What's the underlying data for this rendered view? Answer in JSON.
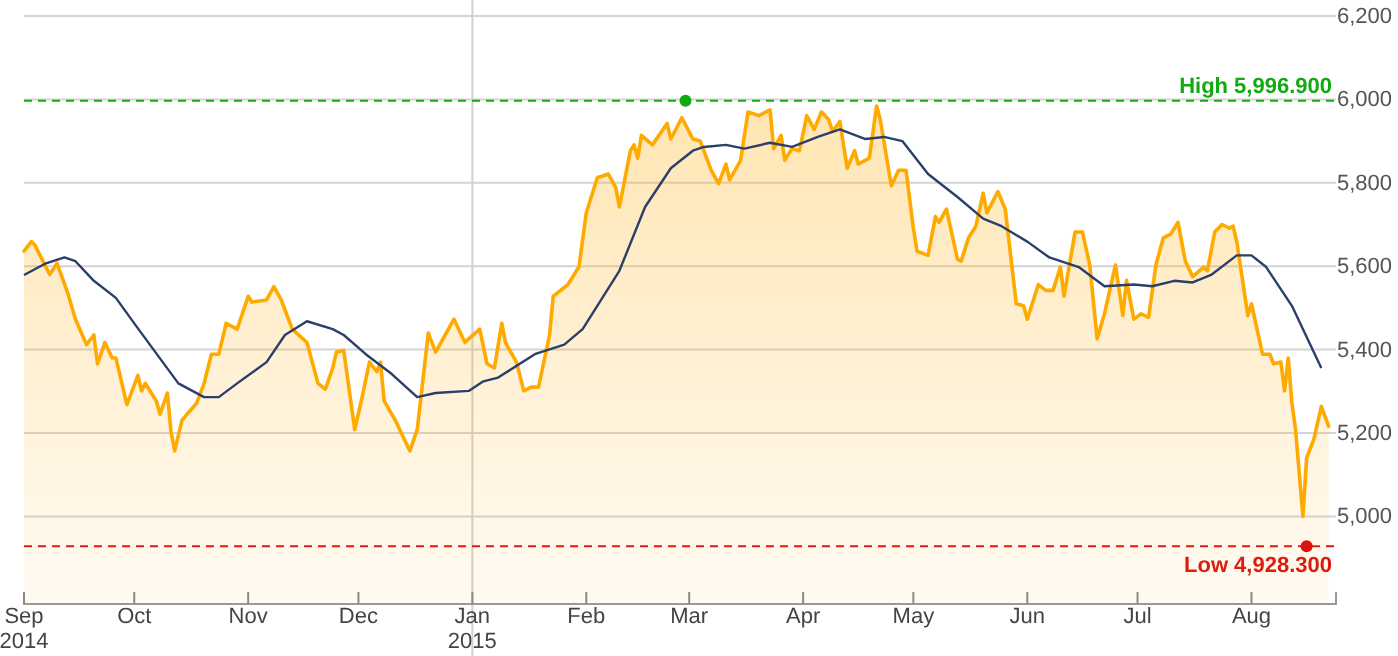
{
  "chart_data": {
    "type": "area",
    "xlim": [
      "2014-09-01",
      "2015-08-24"
    ],
    "ylim": [
      4790,
      6200
    ],
    "yticks": [
      {
        "value": 5000,
        "label": "5,000"
      },
      {
        "value": 5200,
        "label": "5,200"
      },
      {
        "value": 5400,
        "label": "5,400"
      },
      {
        "value": 5600,
        "label": "5,600"
      },
      {
        "value": 5800,
        "label": "5,800"
      },
      {
        "value": 6000,
        "label": "6,000"
      },
      {
        "value": 6200,
        "label": "6,200"
      }
    ],
    "xticks": [
      {
        "value": "2014-09-01",
        "label": "Sep"
      },
      {
        "value": "2014-10-01",
        "label": "Oct"
      },
      {
        "value": "2014-11-01",
        "label": "Nov"
      },
      {
        "value": "2014-12-01",
        "label": "Dec"
      },
      {
        "value": "2015-01-01",
        "label": "Jan"
      },
      {
        "value": "2015-02-01",
        "label": "Feb"
      },
      {
        "value": "2015-03-01",
        "label": "Mar"
      },
      {
        "value": "2015-04-01",
        "label": "Apr"
      },
      {
        "value": "2015-05-01",
        "label": "May"
      },
      {
        "value": "2015-06-01",
        "label": "Jun"
      },
      {
        "value": "2015-07-01",
        "label": "Jul"
      },
      {
        "value": "2015-08-01",
        "label": "Aug"
      }
    ],
    "grid": "y",
    "annotations": [
      "2014",
      "2015"
    ],
    "ref_lines": [
      {
        "axis": "y",
        "value": 5996.9,
        "label": "High 5,996.900",
        "color": "#11aa11",
        "line_style": "dashed"
      },
      {
        "axis": "y",
        "value": 4928.3,
        "label": "Low 4,928.300",
        "color": "#dd1111",
        "line_style": "dashed"
      },
      {
        "axis": "x",
        "value": "2015-01-01",
        "color": "#d0d0d0",
        "line_style": "solid"
      }
    ],
    "series": [
      {
        "color": "#ffaa00",
        "x": [
          "2014-09-01",
          "2014-09-03",
          "2014-09-04",
          "2014-09-08",
          "2014-09-10",
          "2014-09-13",
          "2014-09-15",
          "2014-09-18",
          "2014-09-20",
          "2014-09-21",
          "2014-09-23",
          "2014-09-25",
          "2014-09-26",
          "2014-09-29",
          "2014-10-02",
          "2014-10-03",
          "2014-10-04",
          "2014-10-07",
          "2014-10-08",
          "2014-10-10",
          "2014-10-11",
          "2014-10-12",
          "2014-10-14",
          "2014-10-18",
          "2014-10-20",
          "2014-10-22",
          "2014-10-24",
          "2014-10-26",
          "2014-10-29",
          "2014-11-01",
          "2014-11-02",
          "2014-11-06",
          "2014-11-08",
          "2014-11-10",
          "2014-11-13",
          "2014-11-17",
          "2014-11-20",
          "2014-11-22",
          "2014-11-24",
          "2014-11-25",
          "2014-11-27",
          "2014-11-30",
          "2014-12-02",
          "2014-12-04",
          "2014-12-06",
          "2014-12-07",
          "2014-12-08",
          "2014-12-11",
          "2014-12-15",
          "2014-12-17",
          "2014-12-20",
          "2014-12-22",
          "2014-12-27",
          "2014-12-30",
          "2014-12-31",
          "2015-01-03",
          "2015-01-05",
          "2015-01-07",
          "2015-01-09",
          "2015-01-10",
          "2015-01-13",
          "2015-01-15",
          "2015-01-17",
          "2015-01-19",
          "2015-01-22",
          "2015-01-23",
          "2015-01-27",
          "2015-01-30",
          "2015-02-01",
          "2015-02-04",
          "2015-02-07",
          "2015-02-09",
          "2015-02-10",
          "2015-02-13",
          "2015-02-14",
          "2015-02-15",
          "2015-02-16",
          "2015-02-19",
          "2015-02-23",
          "2015-02-24",
          "2015-02-27",
          "2015-03-02",
          "2015-03-04",
          "2015-03-07",
          "2015-03-09",
          "2015-03-11",
          "2015-03-12",
          "2015-03-15",
          "2015-03-17",
          "2015-03-20",
          "2015-03-23",
          "2015-03-24",
          "2015-03-26",
          "2015-03-27",
          "2015-03-29",
          "2015-03-31",
          "2015-04-02",
          "2015-04-04",
          "2015-04-06",
          "2015-04-08",
          "2015-04-09",
          "2015-04-11",
          "2015-04-13",
          "2015-04-15",
          "2015-04-16",
          "2015-04-19",
          "2015-04-21",
          "2015-04-22",
          "2015-04-25",
          "2015-04-27",
          "2015-04-29",
          "2015-05-01",
          "2015-05-02",
          "2015-05-05",
          "2015-05-07",
          "2015-05-08",
          "2015-05-10",
          "2015-05-13",
          "2015-05-14",
          "2015-05-16",
          "2015-05-18",
          "2015-05-20",
          "2015-05-21",
          "2015-05-24",
          "2015-05-26",
          "2015-05-29",
          "2015-05-31",
          "2015-06-01",
          "2015-06-04",
          "2015-06-06",
          "2015-06-08",
          "2015-06-10",
          "2015-06-11",
          "2015-06-14",
          "2015-06-16",
          "2015-06-18",
          "2015-06-20",
          "2015-06-22",
          "2015-06-25",
          "2015-06-27",
          "2015-06-28",
          "2015-06-30",
          "2015-07-02",
          "2015-07-04",
          "2015-07-06",
          "2015-07-08",
          "2015-07-10",
          "2015-07-12",
          "2015-07-14",
          "2015-07-16",
          "2015-07-19",
          "2015-07-20",
          "2015-07-22",
          "2015-07-24",
          "2015-07-26",
          "2015-07-27",
          "2015-07-28",
          "2015-07-31",
          "2015-08-01",
          "2015-08-04",
          "2015-08-06",
          "2015-08-07",
          "2015-08-09",
          "2015-08-10",
          "2015-08-11",
          "2015-08-12",
          "2015-08-13",
          "2015-08-15",
          "2015-08-16",
          "2015-08-18",
          "2015-08-20",
          "2015-08-22"
        ],
        "values": [
          5636,
          5659,
          5650,
          5580,
          5607,
          5533,
          5473,
          5412,
          5435,
          5366,
          5417,
          5380,
          5380,
          5268,
          5338,
          5301,
          5319,
          5277,
          5245,
          5296,
          5203,
          5157,
          5231,
          5272,
          5319,
          5389,
          5389,
          5463,
          5449,
          5528,
          5514,
          5519,
          5551,
          5519,
          5449,
          5417,
          5319,
          5305,
          5356,
          5394,
          5398,
          5208,
          5286,
          5370,
          5347,
          5370,
          5277,
          5231,
          5157,
          5208,
          5440,
          5394,
          5473,
          5417,
          5426,
          5449,
          5366,
          5356,
          5463,
          5417,
          5370,
          5301,
          5310,
          5310,
          5435,
          5528,
          5556,
          5598,
          5728,
          5812,
          5821,
          5789,
          5742,
          5877,
          5891,
          5859,
          5914,
          5891,
          5942,
          5905,
          5956,
          5905,
          5900,
          5830,
          5798,
          5845,
          5807,
          5854,
          5970,
          5961,
          5975,
          5882,
          5914,
          5854,
          5882,
          5877,
          5961,
          5928,
          5970,
          5951,
          5923,
          5947,
          5835,
          5877,
          5845,
          5859,
          5984,
          5951,
          5793,
          5830,
          5830,
          5691,
          5636,
          5626,
          5719,
          5705,
          5737,
          5617,
          5612,
          5668,
          5696,
          5775,
          5728,
          5779,
          5737,
          5510,
          5505,
          5473,
          5556,
          5542,
          5542,
          5598,
          5528,
          5682,
          5682,
          5603,
          5426,
          5486,
          5603,
          5482,
          5566,
          5473,
          5486,
          5477,
          5603,
          5668,
          5677,
          5705,
          5612,
          5575,
          5598,
          5589,
          5682,
          5700,
          5691,
          5696,
          5659,
          5482,
          5510,
          5389,
          5389,
          5366,
          5370,
          5301,
          5380,
          5272,
          5208,
          5000,
          5140,
          5186,
          5264,
          5216
        ]
      },
      {
        "type": "line",
        "color": "#2b3f6b",
        "x": [
          "2014-09-01",
          "2014-09-07",
          "2014-09-12",
          "2014-09-15",
          "2014-09-20",
          "2014-09-26",
          "2014-10-01",
          "2014-10-06",
          "2014-10-13",
          "2014-10-20",
          "2014-10-24",
          "2014-10-29",
          "2014-11-06",
          "2014-11-11",
          "2014-11-17",
          "2014-11-24",
          "2014-11-27",
          "2014-12-03",
          "2014-12-10",
          "2014-12-17",
          "2014-12-22",
          "2014-12-31",
          "2015-01-04",
          "2015-01-08",
          "2015-01-18",
          "2015-01-26",
          "2015-01-31",
          "2015-02-10",
          "2015-02-17",
          "2015-02-24",
          "2015-03-02",
          "2015-03-05",
          "2015-03-11",
          "2015-03-16",
          "2015-03-23",
          "2015-03-29",
          "2015-04-05",
          "2015-04-11",
          "2015-04-18",
          "2015-04-23",
          "2015-04-28",
          "2015-05-05",
          "2015-05-13",
          "2015-05-20",
          "2015-05-25",
          "2015-06-01",
          "2015-06-07",
          "2015-06-15",
          "2015-06-22",
          "2015-06-30",
          "2015-07-05",
          "2015-07-11",
          "2015-07-16",
          "2015-07-21",
          "2015-07-28",
          "2015-08-01",
          "2015-08-05",
          "2015-08-12",
          "2015-08-20"
        ],
        "values": [
          5579,
          5607,
          5621,
          5612,
          5565,
          5524,
          5463,
          5403,
          5319,
          5286,
          5286,
          5319,
          5370,
          5435,
          5468,
          5449,
          5435,
          5389,
          5342,
          5286,
          5296,
          5301,
          5324,
          5333,
          5389,
          5412,
          5449,
          5589,
          5742,
          5835,
          5877,
          5886,
          5891,
          5882,
          5896,
          5886,
          5910,
          5928,
          5905,
          5910,
          5900,
          5821,
          5766,
          5714,
          5696,
          5659,
          5621,
          5598,
          5552,
          5556,
          5552,
          5565,
          5561,
          5579,
          5626,
          5626,
          5598,
          5505,
          5356
        ]
      },
      {
        "type": "scatter",
        "marker": "circle",
        "x": [
          "2015-02-28",
          "2015-08-16"
        ],
        "values": [
          5996.9,
          4928.3
        ],
        "colors": [
          "#11aa11",
          "#dd1111"
        ]
      }
    ]
  }
}
